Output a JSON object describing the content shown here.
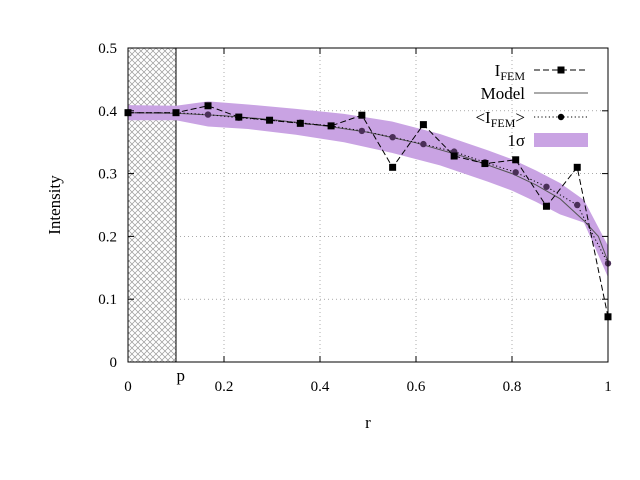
{
  "chart_data": {
    "type": "line",
    "title": "",
    "xlabel": "r",
    "ylabel": "Intensity",
    "xlim": [
      0,
      1
    ],
    "ylim": [
      0,
      0.5
    ],
    "grid": true,
    "legend_position": "top-right",
    "x_ticks": [
      "0",
      "0.2",
      "0.4",
      "0.6",
      "0.8",
      "1"
    ],
    "y_ticks": [
      "0",
      "0.1",
      "0.2",
      "0.3",
      "0.4",
      "0.5"
    ],
    "excluded_region": {
      "x_range": [
        0,
        0.1
      ],
      "label": "p",
      "label_x": 0.11,
      "pattern": "crosshatch"
    },
    "series": [
      {
        "name": "I_FEM",
        "legend_main": "I",
        "legend_sub": "FEM",
        "style": "dashed-square",
        "x": [
          0,
          0.1,
          0.1667,
          0.2308,
          0.2949,
          0.359,
          0.4231,
          0.4872,
          0.5513,
          0.6154,
          0.6795,
          0.7436,
          0.8077,
          0.8718,
          0.9359,
          1.0
        ],
        "y": [
          0.397,
          0.397,
          0.408,
          0.39,
          0.385,
          0.38,
          0.376,
          0.393,
          0.31,
          0.378,
          0.328,
          0.316,
          0.322,
          0.248,
          0.31,
          0.072
        ]
      },
      {
        "name": "Model",
        "legend_main": "Model",
        "style": "solid",
        "x": [
          0,
          0.1,
          0.2,
          0.3,
          0.4,
          0.5,
          0.6,
          0.7,
          0.8,
          0.85,
          0.9,
          0.95,
          0.98,
          1.0
        ],
        "y": [
          0.397,
          0.396,
          0.392,
          0.386,
          0.377,
          0.366,
          0.349,
          0.327,
          0.3,
          0.282,
          0.26,
          0.225,
          0.2,
          0.16
        ]
      },
      {
        "name": "<I_FEM>",
        "legend_main": "<I",
        "legend_sub": "FEM",
        "legend_end": ">",
        "style": "dotted-circle",
        "x": [
          0,
          0.1,
          0.1667,
          0.2308,
          0.2949,
          0.359,
          0.4231,
          0.4872,
          0.5513,
          0.6154,
          0.6795,
          0.7436,
          0.8077,
          0.8718,
          0.9359,
          1.0
        ],
        "y": [
          0.397,
          0.397,
          0.394,
          0.389,
          0.385,
          0.381,
          0.376,
          0.368,
          0.358,
          0.347,
          0.335,
          0.318,
          0.302,
          0.279,
          0.25,
          0.157
        ]
      },
      {
        "name": "1σ",
        "legend_main": "1σ",
        "style": "band",
        "color": "#c9a3e3",
        "x": [
          0,
          0.1,
          0.1667,
          0.25,
          0.35,
          0.45,
          0.55,
          0.65,
          0.75,
          0.8,
          0.85,
          0.9,
          0.95,
          1.0
        ],
        "upper": [
          0.409,
          0.408,
          0.415,
          0.41,
          0.403,
          0.395,
          0.383,
          0.363,
          0.337,
          0.323,
          0.305,
          0.285,
          0.258,
          0.185
        ],
        "lower": [
          0.385,
          0.385,
          0.375,
          0.371,
          0.362,
          0.35,
          0.333,
          0.313,
          0.287,
          0.273,
          0.255,
          0.235,
          0.222,
          0.135
        ]
      }
    ]
  }
}
